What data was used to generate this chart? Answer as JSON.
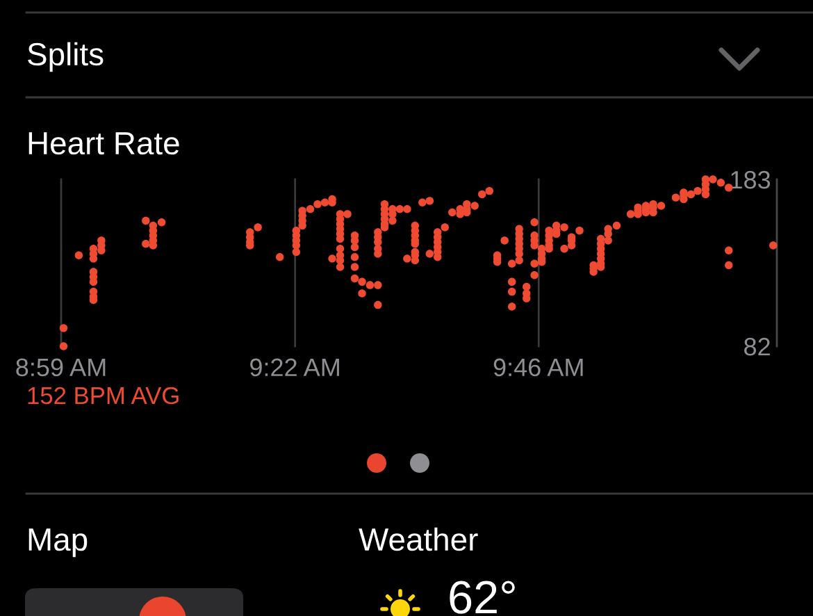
{
  "chart_data": {
    "type": "scatter",
    "title": "Heart Rate",
    "annotations": [
      "152 BPM AVG",
      "Splits",
      "Map",
      "Weather",
      "62°"
    ],
    "color": "#ef4a32",
    "marker": "circle",
    "grid": "x",
    "xlim": [
      8.983,
      10.158
    ],
    "xticks": [
      {
        "value": 8.983,
        "label": "8:59 AM"
      },
      {
        "value": 9.367,
        "label": "9:22 AM"
      },
      {
        "value": 9.767,
        "label": "9:46 AM"
      }
    ],
    "ylim": [
      82,
      183
    ],
    "yticks": [
      82,
      183
    ],
    "x": [
      8.987,
      8.987,
      9.012,
      9.036,
      9.036,
      9.036,
      9.036,
      9.036,
      9.036,
      9.036,
      9.036,
      9.036,
      9.049,
      9.049,
      9.049,
      9.122,
      9.122,
      9.134,
      9.134,
      9.134,
      9.134,
      9.134,
      9.148,
      9.293,
      9.293,
      9.293,
      9.293,
      9.306,
      9.342,
      9.369,
      9.369,
      9.369,
      9.369,
      9.369,
      9.379,
      9.379,
      9.379,
      9.379,
      9.392,
      9.404,
      9.416,
      9.428,
      9.428,
      9.428,
      9.441,
      9.441,
      9.441,
      9.441,
      9.441,
      9.441,
      9.441,
      9.441,
      9.441,
      9.441,
      9.453,
      9.465,
      9.465,
      9.465,
      9.465,
      9.465,
      9.465,
      9.477,
      9.477,
      9.49,
      9.503,
      9.503,
      9.503,
      9.503,
      9.503,
      9.503,
      9.503,
      9.514,
      9.514,
      9.514,
      9.514,
      9.514,
      9.514,
      9.527,
      9.527,
      9.527,
      9.539,
      9.551,
      9.551,
      9.564,
      9.564,
      9.564,
      9.564,
      9.564,
      9.564,
      9.564,
      9.564,
      9.576,
      9.588,
      9.588,
      9.601,
      9.601,
      9.601,
      9.601,
      9.601,
      9.601,
      9.613,
      9.625,
      9.638,
      9.638,
      9.649,
      9.649,
      9.649,
      9.662,
      9.674,
      9.686,
      9.699,
      9.699,
      9.699,
      9.711,
      9.723,
      9.723,
      9.723,
      9.723,
      9.735,
      9.735,
      9.735,
      9.735,
      9.735,
      9.735,
      9.735,
      9.747,
      9.747,
      9.747,
      9.76,
      9.76,
      9.76,
      9.76,
      9.76,
      9.76,
      9.772,
      9.772,
      9.772,
      9.772,
      9.784,
      9.784,
      9.784,
      9.784,
      9.784,
      9.796,
      9.796,
      9.796,
      9.809,
      9.809,
      9.821,
      9.821,
      9.821,
      9.834,
      9.857,
      9.857,
      9.857,
      9.869,
      9.869,
      9.869,
      9.869,
      9.869,
      9.869,
      9.869,
      9.881,
      9.881,
      9.881,
      9.895,
      9.918,
      9.93,
      9.93,
      9.93,
      9.943,
      9.943,
      9.943,
      9.955,
      9.955,
      9.955,
      9.968,
      9.992,
      10.005,
      10.005,
      10.005,
      10.017,
      10.028,
      10.041,
      10.041,
      10.041,
      10.041,
      10.053,
      10.066,
      10.079,
      10.079,
      10.079,
      10.152
    ],
    "values": [
      93,
      82,
      137,
      141,
      138,
      135,
      127,
      124,
      121,
      115,
      112,
      110,
      146,
      143,
      140,
      158,
      144,
      155,
      152,
      149,
      146,
      143,
      157,
      151,
      148,
      145,
      143,
      154,
      136,
      152,
      149,
      146,
      143,
      139,
      164,
      161,
      158,
      155,
      165,
      168,
      169,
      171,
      169,
      135,
      162,
      159,
      156,
      153,
      150,
      147,
      141,
      137,
      134,
      130,
      162,
      149,
      146,
      142,
      136,
      130,
      123,
      121,
      114,
      119,
      119,
      107,
      151,
      148,
      145,
      141,
      138,
      168,
      165,
      162,
      159,
      156,
      154,
      165,
      162,
      158,
      165,
      165,
      135,
      155,
      152,
      149,
      146,
      144,
      139,
      137,
      134,
      169,
      170,
      138,
      151,
      148,
      145,
      142,
      139,
      136,
      154,
      163,
      165,
      162,
      168,
      165,
      163,
      167,
      174,
      176,
      137,
      135,
      133,
      146,
      132,
      121,
      115,
      106,
      153,
      150,
      147,
      144,
      141,
      138,
      134,
      118,
      114,
      111,
      157,
      149,
      146,
      143,
      132,
      125,
      141,
      138,
      135,
      133,
      152,
      149,
      146,
      143,
      141,
      155,
      152,
      150,
      154,
      141,
      148,
      146,
      143,
      152,
      131,
      129,
      127,
      147,
      144,
      141,
      138,
      135,
      132,
      130,
      153,
      150,
      146,
      155,
      162,
      166,
      164,
      162,
      167,
      165,
      163,
      168,
      166,
      163,
      167,
      172,
      175,
      173,
      171,
      174,
      176,
      183,
      180,
      177,
      174,
      183,
      181,
      178,
      140,
      131,
      143
    ]
  }
}
